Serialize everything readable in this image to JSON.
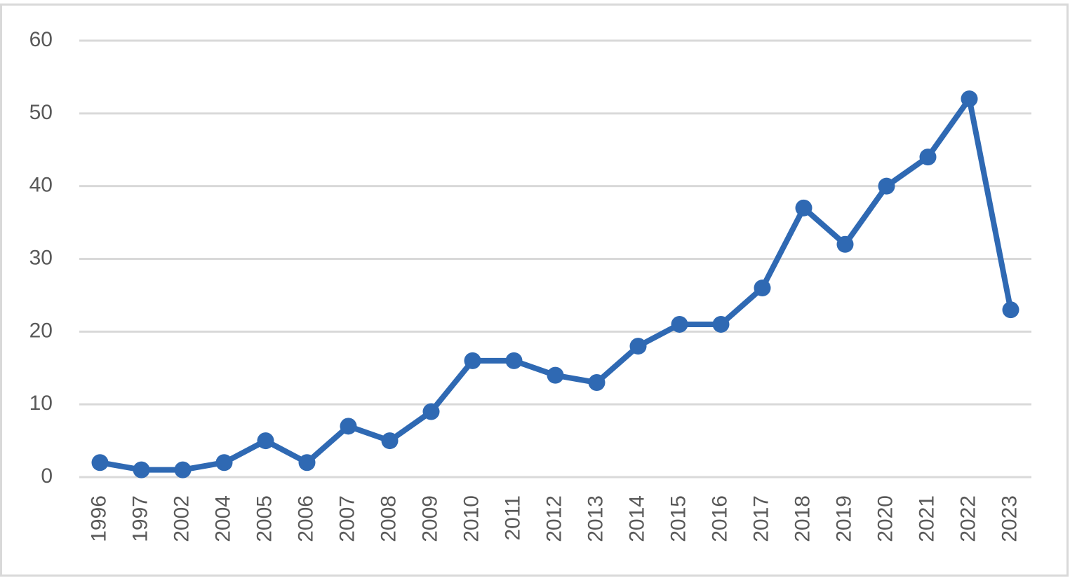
{
  "chart_data": {
    "type": "line",
    "categories": [
      "1996",
      "1997",
      "2002",
      "2004",
      "2005",
      "2006",
      "2007",
      "2008",
      "2009",
      "2010",
      "2011",
      "2012",
      "2013",
      "2014",
      "2015",
      "2016",
      "2017",
      "2018",
      "2019",
      "2020",
      "2021",
      "2022",
      "2023"
    ],
    "values": [
      2,
      1,
      1,
      2,
      5,
      2,
      7,
      5,
      9,
      16,
      16,
      14,
      13,
      18,
      21,
      21,
      26,
      37,
      32,
      40,
      44,
      52,
      23
    ],
    "color": "#2f69b3",
    "ylim": [
      0,
      60
    ],
    "yticks": [
      0,
      10,
      20,
      30,
      40,
      50,
      60
    ],
    "grid": true
  }
}
